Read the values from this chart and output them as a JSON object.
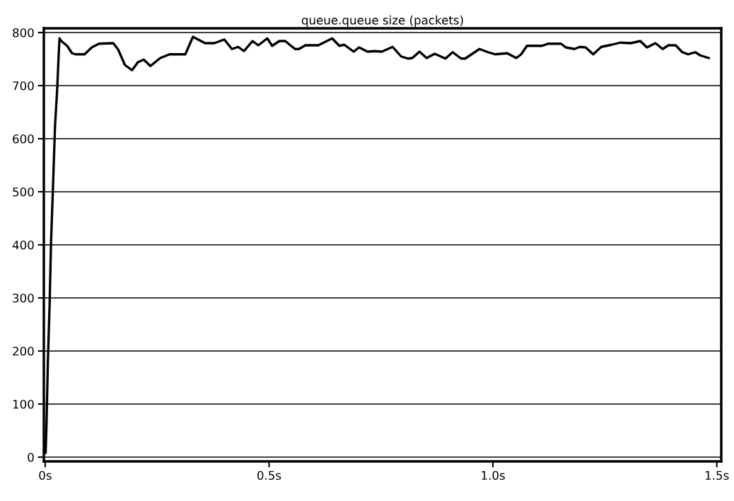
{
  "chart_data": {
    "type": "line",
    "title": "queue.queue size (packets)",
    "x": [
      0.0,
      0.001,
      0.003,
      0.006,
      0.01,
      0.013,
      0.017,
      0.022,
      0.027,
      0.03,
      0.032,
      0.036,
      0.049,
      0.06,
      0.068,
      0.088,
      0.104,
      0.12,
      0.152,
      0.163,
      0.178,
      0.194,
      0.207,
      0.22,
      0.235,
      0.257,
      0.278,
      0.313,
      0.33,
      0.357,
      0.378,
      0.4,
      0.417,
      0.431,
      0.444,
      0.463,
      0.476,
      0.496,
      0.507,
      0.523,
      0.536,
      0.558,
      0.567,
      0.581,
      0.61,
      0.641,
      0.657,
      0.668,
      0.689,
      0.701,
      0.72,
      0.736,
      0.752,
      0.776,
      0.795,
      0.81,
      0.82,
      0.836,
      0.852,
      0.87,
      0.894,
      0.91,
      0.929,
      0.938,
      0.97,
      0.989,
      1.005,
      1.032,
      1.052,
      1.063,
      1.076,
      1.11,
      1.123,
      1.152,
      1.163,
      1.182,
      1.194,
      1.207,
      1.224,
      1.242,
      1.265,
      1.284,
      1.308,
      1.329,
      1.344,
      1.363,
      1.379,
      1.392,
      1.408,
      1.423,
      1.436,
      1.452,
      1.463,
      1.482
    ],
    "series": [
      {
        "color": "#000000",
        "values": [
          20,
          8,
          64,
          179,
          291,
          403,
          499,
          624,
          696,
          755,
          789,
          784,
          775,
          761,
          759,
          759,
          772,
          779,
          780,
          768,
          739,
          729,
          744,
          749,
          737,
          752,
          759,
          759,
          792,
          780,
          780,
          787,
          769,
          773,
          765,
          784,
          776,
          789,
          775,
          784,
          784,
          769,
          769,
          776,
          776,
          789,
          775,
          777,
          764,
          772,
          764,
          765,
          764,
          773,
          755,
          751,
          752,
          764,
          752,
          760,
          751,
          763,
          751,
          751,
          769,
          763,
          759,
          761,
          752,
          759,
          775,
          775,
          779,
          779,
          772,
          769,
          773,
          772,
          759,
          773,
          777,
          781,
          780,
          784,
          772,
          780,
          769,
          776,
          776,
          763,
          759,
          763,
          757,
          752
        ]
      }
    ],
    "xlim": [
      -0.003,
      1.51
    ],
    "ylim": [
      -8,
      808
    ],
    "xticks": [
      {
        "value": 0,
        "label": "0s"
      },
      {
        "value": 0.5,
        "label": "0.5s"
      },
      {
        "value": 1.0,
        "label": "1.0s"
      },
      {
        "value": 1.5,
        "label": "1.5s"
      }
    ],
    "yticks": [
      0,
      100,
      200,
      300,
      400,
      500,
      600,
      700,
      800
    ],
    "grid": "y",
    "legend": false,
    "marker": "none",
    "line_style": "solid"
  }
}
